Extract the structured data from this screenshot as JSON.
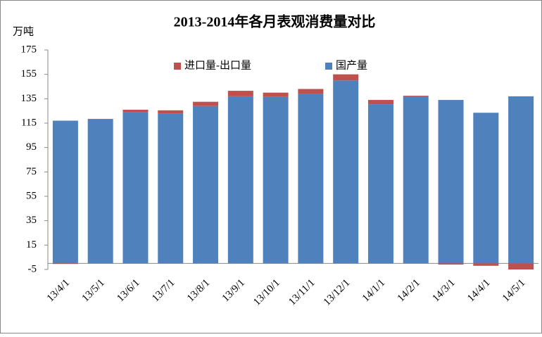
{
  "chart_data": {
    "type": "stacked_bar",
    "title": "2013-2014年各月表观消费量对比",
    "y_label": "万吨",
    "categories": [
      "13/4/1",
      "13/5/1",
      "13/6/1",
      "13/7/1",
      "13/8/1",
      "13/9/1",
      "13/10/1",
      "13/11/1",
      "13/12/1",
      "14/1/1",
      "14/2/1",
      "14/3/1",
      "14/4/1",
      "14/5/1"
    ],
    "series": [
      {
        "name": "国产量",
        "color": "#4f81bd",
        "values": [
          117,
          118,
          124,
          123,
          129,
          137,
          136.5,
          139,
          150,
          130.5,
          137,
          134,
          123.5,
          137
        ]
      },
      {
        "name": "进口量-出口量",
        "color": "#c0504d",
        "values": [
          -0.5,
          0.5,
          2,
          2.5,
          3.5,
          4.5,
          3.5,
          4,
          5,
          3.5,
          0.5,
          -1,
          -2,
          -5
        ]
      }
    ],
    "ylim": [
      -5,
      175
    ],
    "yticks": [
      -5,
      15,
      35,
      55,
      75,
      95,
      115,
      135,
      155,
      175
    ],
    "grid": false
  }
}
